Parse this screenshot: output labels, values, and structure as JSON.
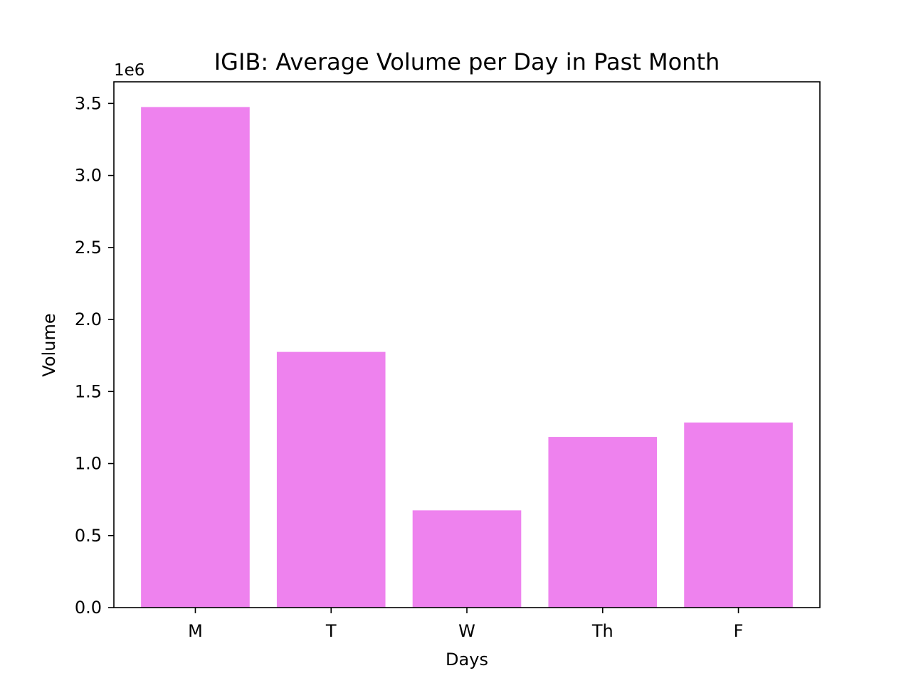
{
  "chart_data": {
    "type": "bar",
    "title": "IGIB: Average Volume per Day in Past Month",
    "xlabel": "Days",
    "ylabel": "Volume",
    "y_offset_label": "1e6",
    "categories": [
      "M",
      "T",
      "W",
      "Th",
      "F"
    ],
    "values": [
      3475000,
      1775000,
      675000,
      1185000,
      1285000
    ],
    "ylim": [
      0,
      3650000
    ],
    "yticks": [
      0,
      500000,
      1000000,
      1500000,
      2000000,
      2500000,
      3000000,
      3500000
    ],
    "ytick_labels": [
      "0.0",
      "0.5",
      "1.0",
      "1.5",
      "2.0",
      "2.5",
      "3.0",
      "3.5"
    ],
    "grid": false,
    "bar_color": "#ee82ee"
  }
}
